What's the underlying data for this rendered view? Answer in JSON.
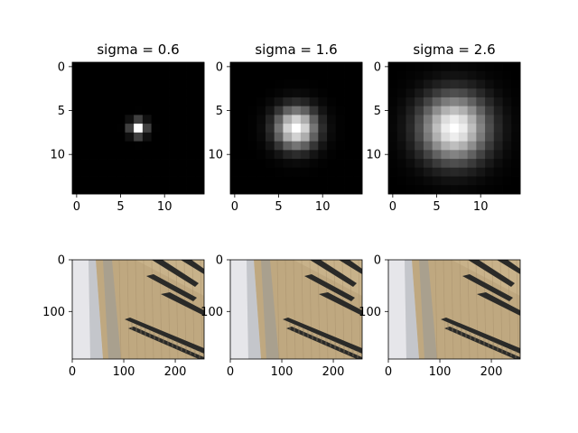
{
  "chart_data": [
    {
      "type": "heatmap",
      "title": "sigma = 0.6",
      "sigma": 0.6,
      "grid_size": 15,
      "colormap": "gray",
      "xticks": [
        "0",
        "5",
        "10"
      ],
      "yticks": [
        "0",
        "5",
        "10"
      ]
    },
    {
      "type": "heatmap",
      "title": "sigma = 1.6",
      "sigma": 1.6,
      "grid_size": 15,
      "colormap": "gray",
      "xticks": [
        "0",
        "5",
        "10"
      ],
      "yticks": [
        "0",
        "5",
        "10"
      ]
    },
    {
      "type": "heatmap",
      "title": "sigma = 2.6",
      "sigma": 2.6,
      "grid_size": 15,
      "colormap": "gray",
      "xticks": [
        "0",
        "5",
        "10"
      ],
      "yticks": [
        "0",
        "5",
        "10"
      ]
    },
    {
      "type": "image",
      "title": "",
      "content": "photo of a building facade with window rows",
      "xlim": [
        0,
        256
      ],
      "ylim": [
        192,
        0
      ],
      "xticks": [
        "0",
        "100",
        "200"
      ],
      "yticks": [
        "0",
        "100"
      ]
    },
    {
      "type": "image",
      "title": "",
      "content": "photo of a building facade with window rows",
      "xlim": [
        0,
        256
      ],
      "ylim": [
        192,
        0
      ],
      "xticks": [
        "0",
        "100",
        "200"
      ],
      "yticks": [
        "0",
        "100"
      ]
    },
    {
      "type": "image",
      "title": "",
      "content": "photo of a building facade with window rows",
      "xlim": [
        0,
        256
      ],
      "ylim": [
        192,
        0
      ],
      "xticks": [
        "0",
        "100",
        "200"
      ],
      "yticks": [
        "0",
        "100"
      ]
    }
  ]
}
